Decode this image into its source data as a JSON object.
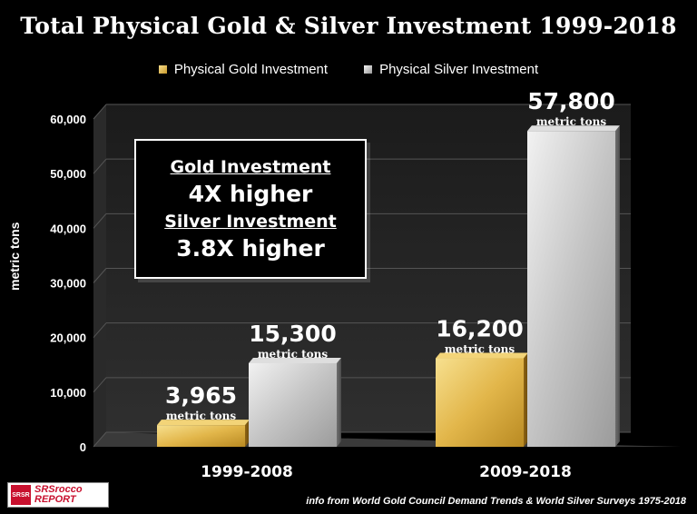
{
  "chart_data": {
    "type": "bar",
    "title": "Total Physical Gold & Silver Investment 1999-2018",
    "ylabel": "metric tons",
    "xlabel": "",
    "ylim": [
      0,
      60000
    ],
    "yticks": [
      "0",
      "10,000",
      "20,000",
      "30,000",
      "40,000",
      "50,000",
      "60,000"
    ],
    "categories": [
      "1999-2008",
      "2009-2018"
    ],
    "legend_position": "top",
    "series": [
      {
        "name": "Physical Gold Investment",
        "values": [
          3965,
          16200
        ],
        "labels": [
          "3,965",
          "16,200"
        ],
        "color": "#d9a93a"
      },
      {
        "name": "Physical Silver Investment",
        "values": [
          15300,
          57800
        ],
        "labels": [
          "15,300",
          "57,800"
        ],
        "color": "#bdbdbd"
      }
    ],
    "unit_label": "metric tons"
  },
  "callout": {
    "line1": "Gold Investment",
    "line2": "4X higher",
    "line3": "Silver Investment",
    "line4": "3.8X higher"
  },
  "logo": {
    "mark": "SRSR",
    "text_top": "SRSrocco",
    "text_bottom": "REPORT"
  },
  "source": "info from World Gold Council Demand Trends & World Silver Surveys 1975-2018"
}
